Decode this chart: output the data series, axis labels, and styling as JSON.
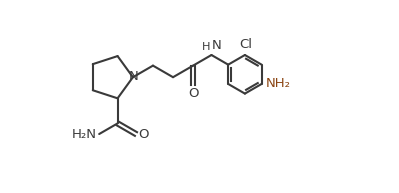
{
  "bg_color": "#ffffff",
  "line_color": "#3a3a3a",
  "line_width": 1.5,
  "font_size": 9.5,
  "figsize": [
    3.99,
    1.93
  ],
  "dpi": 100,
  "xlim": [
    0.0,
    1.3
  ],
  "ylim": [
    0.0,
    1.0
  ]
}
